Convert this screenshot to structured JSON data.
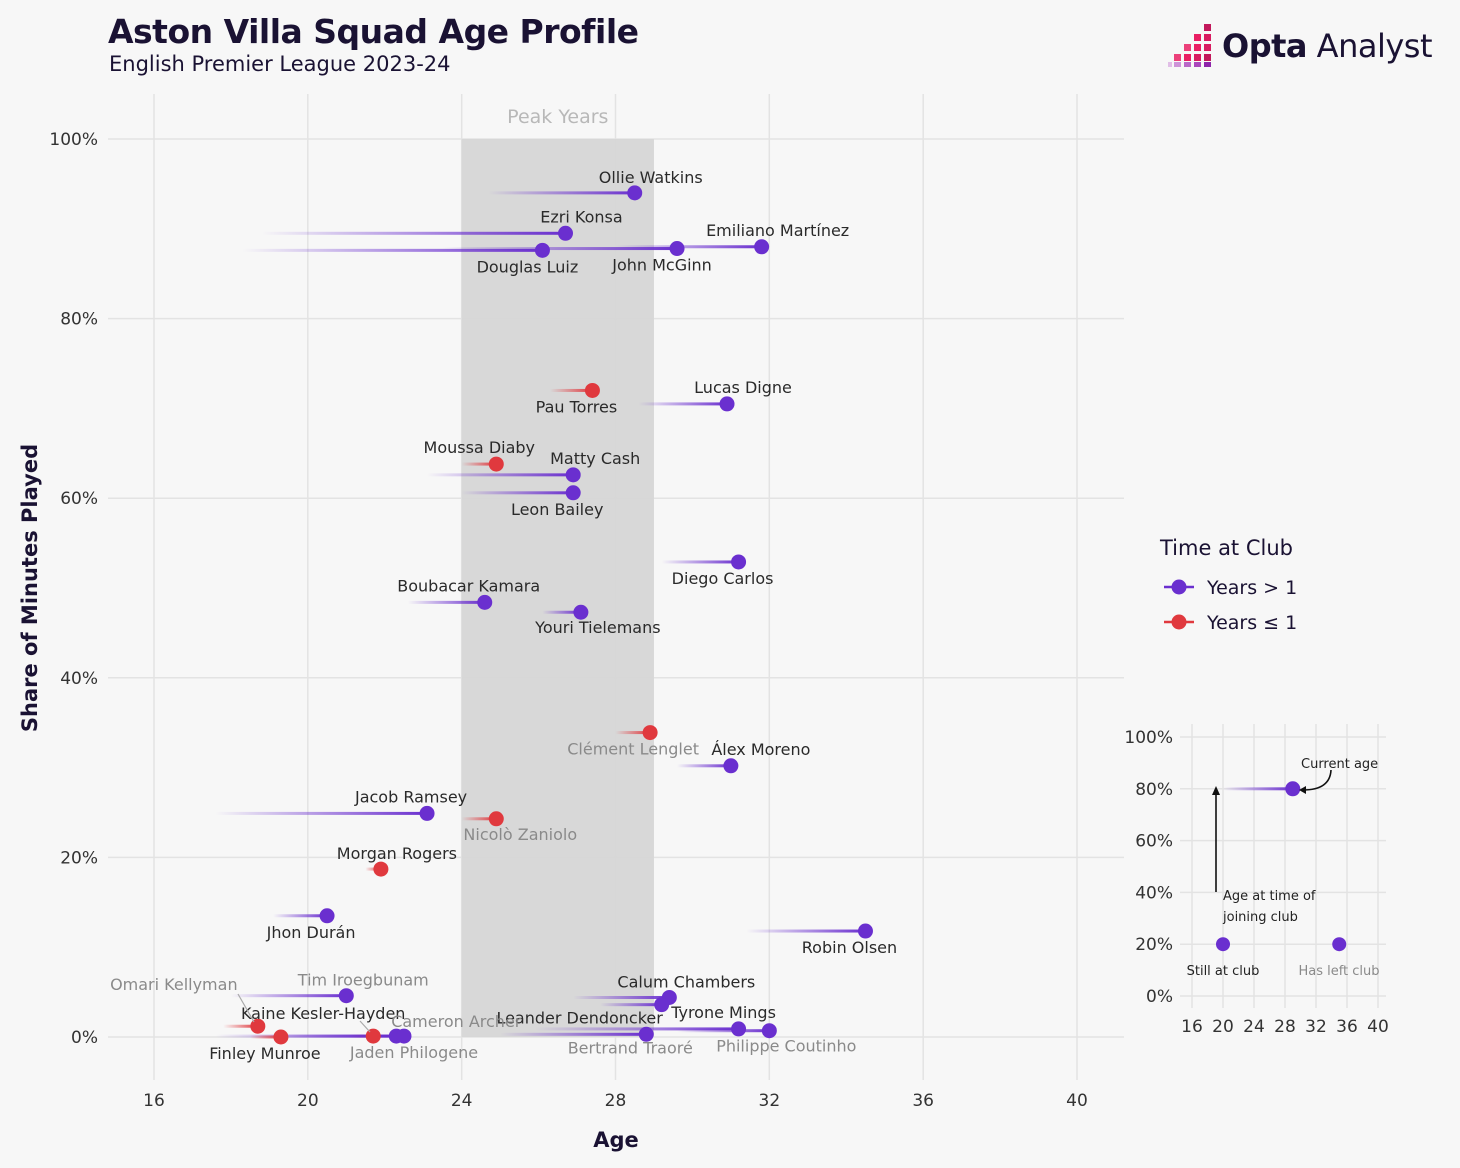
{
  "header": {
    "title": "Aston Villa Squad Age Profile",
    "subtitle": "English Premier League 2023-24"
  },
  "logo": {
    "brand_bold": "Opta",
    "brand_light": "Analyst"
  },
  "colors": {
    "years_gt_1": "#6a2fcf",
    "years_le_1": "#e0393e",
    "peak_band": "#d6d6d6",
    "grid": "#e3e3e3",
    "text_dark": "#1a1233",
    "text_grey": "#8a8a8a"
  },
  "chart_data": {
    "type": "scatter",
    "title": "Aston Villa Squad Age Profile",
    "subtitle": "English Premier League 2023-24",
    "xlabel": "Age",
    "ylabel": "Share of Minutes Played",
    "xlim": [
      15,
      40.5
    ],
    "ylim": [
      -0.05,
      1.05
    ],
    "xticks": [
      16,
      20,
      24,
      28,
      32,
      36,
      40
    ],
    "yticks": [
      {
        "value": 0,
        "label": "0%"
      },
      {
        "value": 0.2,
        "label": "20%"
      },
      {
        "value": 0.4,
        "label": "40%"
      },
      {
        "value": 0.6,
        "label": "60%"
      },
      {
        "value": 0.8,
        "label": "80%"
      },
      {
        "value": 1.0,
        "label": "100%"
      }
    ],
    "grid": true,
    "peak_years": {
      "label": "Peak Years",
      "from": 24,
      "to": 29
    },
    "legend": {
      "title": "Time at Club",
      "position": "right",
      "entries": [
        {
          "label": "Years > 1",
          "group": "gt1"
        },
        {
          "label": "Years ≤ 1",
          "group": "le1"
        }
      ]
    },
    "players": [
      {
        "name": "Ollie Watkins",
        "age": 28.5,
        "joined_age": 24.7,
        "share": 0.94,
        "group": "gt1",
        "still_at_club": true,
        "label_dx": 16,
        "label_dy": -10,
        "anchor": "middle"
      },
      {
        "name": "Ezri Konsa",
        "age": 26.7,
        "joined_age": 18.8,
        "share": 0.895,
        "group": "gt1",
        "still_at_club": true,
        "label_dx": 16,
        "label_dy": -11,
        "anchor": "middle"
      },
      {
        "name": "Emiliano Martínez",
        "age": 31.8,
        "joined_age": 28.0,
        "share": 0.88,
        "group": "gt1",
        "still_at_club": true,
        "label_dx": 16,
        "label_dy": -11,
        "anchor": "middle"
      },
      {
        "name": "John McGinn",
        "age": 29.6,
        "joined_age": 23.5,
        "share": 0.878,
        "group": "gt1",
        "still_at_club": true,
        "label_dx": -15,
        "label_dy": 22,
        "anchor": "middle"
      },
      {
        "name": "Douglas Luiz",
        "age": 26.1,
        "joined_age": 18.3,
        "share": 0.876,
        "group": "gt1",
        "still_at_club": true,
        "label_dx": -15,
        "label_dy": 22,
        "anchor": "middle"
      },
      {
        "name": "Pau Torres",
        "age": 27.4,
        "joined_age": 26.3,
        "share": 0.72,
        "group": "le1",
        "still_at_club": true,
        "label_dx": -16,
        "label_dy": 22,
        "anchor": "middle"
      },
      {
        "name": "Lucas Digne",
        "age": 30.9,
        "joined_age": 28.6,
        "share": 0.705,
        "group": "gt1",
        "still_at_club": true,
        "label_dx": 16,
        "label_dy": -11,
        "anchor": "middle"
      },
      {
        "name": "Moussa Diaby",
        "age": 24.9,
        "joined_age": 24.0,
        "share": 0.638,
        "group": "le1",
        "still_at_club": true,
        "label_dx": -17,
        "label_dy": -11,
        "anchor": "middle"
      },
      {
        "name": "Matty Cash",
        "age": 26.9,
        "joined_age": 23.1,
        "share": 0.626,
        "group": "gt1",
        "still_at_club": true,
        "label_dx": 22,
        "label_dy": -11,
        "anchor": "middle"
      },
      {
        "name": "Leon Bailey",
        "age": 26.9,
        "joined_age": 24.0,
        "share": 0.606,
        "group": "gt1",
        "still_at_club": true,
        "label_dx": -16,
        "label_dy": 22,
        "anchor": "middle"
      },
      {
        "name": "Diego Carlos",
        "age": 31.2,
        "joined_age": 29.2,
        "share": 0.529,
        "group": "gt1",
        "still_at_club": true,
        "label_dx": -16,
        "label_dy": 22,
        "anchor": "middle"
      },
      {
        "name": "Boubacar Kamara",
        "age": 24.6,
        "joined_age": 22.6,
        "share": 0.484,
        "group": "gt1",
        "still_at_club": true,
        "label_dx": -16,
        "label_dy": -11,
        "anchor": "middle"
      },
      {
        "name": "Youri Tielemans",
        "age": 27.1,
        "joined_age": 26.1,
        "share": 0.473,
        "group": "gt1",
        "still_at_club": true,
        "label_dx": 17,
        "label_dy": 21,
        "anchor": "middle"
      },
      {
        "name": "Clément Lenglet",
        "age": 28.9,
        "joined_age": 28.0,
        "share": 0.339,
        "group": "le1",
        "still_at_club": false,
        "label_dx": -17,
        "label_dy": 22,
        "anchor": "middle"
      },
      {
        "name": "Álex Moreno",
        "age": 31.0,
        "joined_age": 29.6,
        "share": 0.302,
        "group": "gt1",
        "still_at_club": true,
        "label_dx": 30,
        "label_dy": -11,
        "anchor": "middle"
      },
      {
        "name": "Jacob Ramsey",
        "age": 23.1,
        "joined_age": 17.6,
        "share": 0.249,
        "group": "gt1",
        "still_at_club": true,
        "label_dx": -16,
        "label_dy": -11,
        "anchor": "middle"
      },
      {
        "name": "Nicolò Zaniolo",
        "age": 24.9,
        "joined_age": 24.0,
        "share": 0.243,
        "group": "le1",
        "still_at_club": false,
        "label_dx": 24,
        "label_dy": 21,
        "anchor": "middle"
      },
      {
        "name": "Morgan Rogers",
        "age": 21.9,
        "joined_age": 21.5,
        "share": 0.187,
        "group": "le1",
        "still_at_club": true,
        "label_dx": 16,
        "label_dy": -10,
        "anchor": "middle"
      },
      {
        "name": "Jhon Durán",
        "age": 20.5,
        "joined_age": 19.1,
        "share": 0.135,
        "group": "gt1",
        "still_at_club": true,
        "label_dx": -16,
        "label_dy": 22,
        "anchor": "middle"
      },
      {
        "name": "Robin Olsen",
        "age": 34.5,
        "joined_age": 31.4,
        "share": 0.118,
        "group": "gt1",
        "still_at_club": true,
        "label_dx": -16,
        "label_dy": 22,
        "anchor": "middle"
      },
      {
        "name": "Tim Iroegbunam",
        "age": 21.0,
        "joined_age": 18.0,
        "share": 0.046,
        "group": "gt1",
        "still_at_club": false,
        "label_dx": 17,
        "label_dy": -10,
        "anchor": "middle"
      },
      {
        "name": "Calum Chambers",
        "age": 29.4,
        "joined_age": 26.9,
        "share": 0.044,
        "group": "gt1",
        "still_at_club": true,
        "label_dx": 17,
        "label_dy": -10,
        "anchor": "middle"
      },
      {
        "name": "Leander Dendoncker",
        "age": 29.2,
        "joined_age": 27.6,
        "share": 0.036,
        "group": "gt1",
        "still_at_club": true,
        "label_dx": -82,
        "label_dy": 19,
        "anchor": "middle"
      },
      {
        "name": "Tyrone Mings",
        "age": 31.2,
        "joined_age": 25.9,
        "share": 0.009,
        "group": "gt1",
        "still_at_club": true,
        "label_dx": -15,
        "label_dy": -11,
        "anchor": "middle"
      },
      {
        "name": "Philippe Coutinho",
        "age": 32.0,
        "joined_age": 29.6,
        "share": 0.007,
        "group": "gt1",
        "still_at_club": false,
        "label_dx": 17,
        "label_dy": 21,
        "anchor": "middle"
      },
      {
        "name": "Bertrand Traoré",
        "age": 28.8,
        "joined_age": 25.0,
        "share": 0.003,
        "group": "gt1",
        "still_at_club": false,
        "label_dx": -16,
        "label_dy": 19,
        "anchor": "middle"
      },
      {
        "name": "Kaine Kesler-Hayden",
        "age": 21.7,
        "joined_age": 21.1,
        "share": 0.001,
        "group": "le1",
        "still_at_club": true,
        "label_dx": -50,
        "label_dy": -17,
        "anchor": "middle"
      },
      {
        "name": "Cameron Archer",
        "age": 22.3,
        "joined_age": 17.6,
        "share": 0.001,
        "group": "gt1",
        "still_at_club": false,
        "label_dx": 60,
        "label_dy": -9,
        "anchor": "middle"
      },
      {
        "name": "Jaden Philogene",
        "age": 22.5,
        "joined_age": 19.0,
        "share": 0.001,
        "group": "gt1",
        "still_at_club": false,
        "label_dx": 10,
        "label_dy": 22,
        "anchor": "middle"
      },
      {
        "name": "Omari Kellyman",
        "age": 18.7,
        "joined_age": 17.8,
        "share": 0.012,
        "group": "le1",
        "still_at_club": false,
        "label_dx": -84,
        "label_dy": -36,
        "anchor": "middle"
      },
      {
        "name": "Finley Munroe",
        "age": 19.3,
        "joined_age": 18.5,
        "share": 0.0,
        "group": "le1",
        "still_at_club": true,
        "label_dx": -16,
        "label_dy": 22,
        "anchor": "middle"
      }
    ],
    "explainer": {
      "xticks": [
        16,
        20,
        24,
        28,
        32,
        36,
        40
      ],
      "yticks": [
        {
          "value": 0,
          "label": "0%"
        },
        {
          "value": 0.2,
          "label": "20%"
        },
        {
          "value": 0.4,
          "label": "40%"
        },
        {
          "value": 0.6,
          "label": "60%"
        },
        {
          "value": 0.8,
          "label": "80%"
        },
        {
          "value": 1.0,
          "label": "100%"
        }
      ],
      "annotations": {
        "current_age": "Current age",
        "joining_age_line1": "Age at time of",
        "joining_age_line2": "joining club",
        "still_at_club": "Still at club",
        "has_left_club": "Has left club"
      },
      "example_player": {
        "age": 29,
        "joined_age": 20,
        "share": 0.8
      },
      "example_still": {
        "age": 20,
        "share": 0.2
      },
      "example_left": {
        "age": 35,
        "share": 0.2
      }
    }
  }
}
